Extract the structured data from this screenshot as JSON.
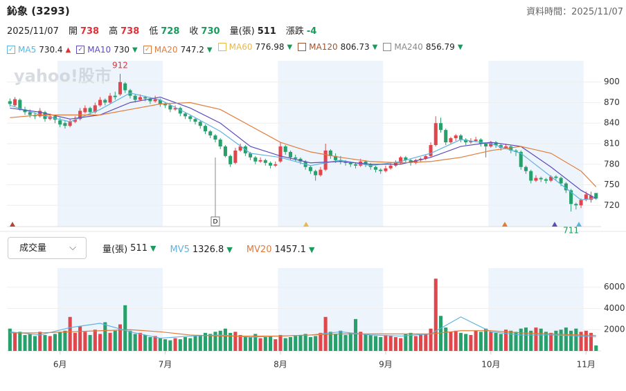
{
  "header": {
    "title": "鈊象 (3293)",
    "time": "資料時間：2025/11/07"
  },
  "quote": {
    "date": "2025/11/07",
    "items": [
      {
        "label": "開",
        "value": "738",
        "color": "#e0313a"
      },
      {
        "label": "高",
        "value": "738",
        "color": "#e0313a"
      },
      {
        "label": "低",
        "value": "728",
        "color": "#1a9a5c"
      },
      {
        "label": "收",
        "value": "730",
        "color": "#1a9a5c"
      },
      {
        "label": "量(張)",
        "value": "511",
        "color": "#222222"
      },
      {
        "label": "漲跌",
        "value": "-4",
        "color": "#1a9a5c"
      }
    ]
  },
  "chart_data": {
    "type": "candlestick",
    "watermark": "yahoo!股市",
    "up_color": "#e0474c",
    "down_color": "#27a06b",
    "xlim": [
      -0.6,
      118
    ],
    "ylim": [
      689,
      931
    ],
    "yticks": [
      720,
      750,
      780,
      810,
      840,
      870,
      900
    ],
    "xticks": [
      {
        "value": 10,
        "label": "6月"
      },
      {
        "value": 31,
        "label": "7月"
      },
      {
        "value": 54,
        "label": "8月"
      },
      {
        "value": 75,
        "label": "9月"
      },
      {
        "value": 96,
        "label": "10月"
      },
      {
        "value": 115,
        "label": "11月"
      }
    ],
    "events": [
      {
        "index": 41,
        "label": "D"
      }
    ],
    "ohlc": [
      [
        872,
        876,
        864,
        868
      ],
      [
        866,
        878,
        864,
        875
      ],
      [
        874,
        876,
        858,
        860
      ],
      [
        860,
        864,
        852,
        856
      ],
      [
        856,
        860,
        848,
        852
      ],
      [
        852,
        856,
        846,
        850
      ],
      [
        850,
        862,
        848,
        858
      ],
      [
        856,
        858,
        842,
        846
      ],
      [
        846,
        854,
        844,
        850
      ],
      [
        850,
        852,
        840,
        845
      ],
      [
        844,
        848,
        834,
        838
      ],
      [
        840,
        844,
        832,
        836
      ],
      [
        836,
        846,
        834,
        842
      ],
      [
        842,
        850,
        840,
        845
      ],
      [
        846,
        862,
        844,
        858
      ],
      [
        856,
        866,
        854,
        862
      ],
      [
        862,
        864,
        852,
        856
      ],
      [
        856,
        870,
        854,
        866
      ],
      [
        866,
        878,
        864,
        874
      ],
      [
        874,
        876,
        866,
        870
      ],
      [
        870,
        884,
        868,
        880
      ],
      [
        880,
        886,
        874,
        878
      ],
      [
        882,
        912,
        880,
        900
      ],
      [
        898,
        900,
        884,
        888
      ],
      [
        888,
        890,
        876,
        880
      ],
      [
        880,
        882,
        870,
        874
      ],
      [
        874,
        882,
        872,
        878
      ],
      [
        878,
        880,
        872,
        876
      ],
      [
        876,
        878,
        868,
        872
      ],
      [
        872,
        880,
        870,
        875
      ],
      [
        874,
        876,
        864,
        868
      ],
      [
        868,
        870,
        862,
        866
      ],
      [
        866,
        868,
        856,
        860
      ],
      [
        860,
        866,
        858,
        862
      ],
      [
        862,
        864,
        850,
        854
      ],
      [
        854,
        856,
        846,
        850
      ],
      [
        850,
        852,
        842,
        846
      ],
      [
        846,
        848,
        838,
        842
      ],
      [
        842,
        844,
        832,
        836
      ],
      [
        836,
        838,
        824,
        828
      ],
      [
        828,
        830,
        818,
        822
      ],
      [
        822,
        824,
        812,
        816
      ],
      [
        816,
        818,
        802,
        806
      ],
      [
        806,
        808,
        790,
        792
      ],
      [
        792,
        794,
        776,
        780
      ],
      [
        782,
        804,
        780,
        800
      ],
      [
        800,
        810,
        798,
        806
      ],
      [
        806,
        808,
        792,
        796
      ],
      [
        796,
        798,
        786,
        790
      ],
      [
        790,
        792,
        780,
        784
      ],
      [
        784,
        790,
        782,
        786
      ],
      [
        786,
        788,
        778,
        782
      ],
      [
        782,
        784,
        774,
        778
      ],
      [
        778,
        784,
        776,
        780
      ],
      [
        784,
        812,
        782,
        806
      ],
      [
        806,
        808,
        794,
        798
      ],
      [
        798,
        800,
        786,
        790
      ],
      [
        790,
        794,
        784,
        788
      ],
      [
        788,
        790,
        780,
        784
      ],
      [
        784,
        786,
        772,
        776
      ],
      [
        776,
        778,
        766,
        770
      ],
      [
        770,
        772,
        756,
        764
      ],
      [
        764,
        776,
        762,
        772
      ],
      [
        772,
        810,
        770,
        800
      ],
      [
        800,
        802,
        788,
        792
      ],
      [
        792,
        796,
        782,
        786
      ],
      [
        786,
        792,
        780,
        784
      ],
      [
        784,
        786,
        778,
        782
      ],
      [
        782,
        784,
        776,
        780
      ],
      [
        780,
        782,
        774,
        778
      ],
      [
        778,
        788,
        776,
        784
      ],
      [
        784,
        786,
        776,
        780
      ],
      [
        780,
        782,
        772,
        776
      ],
      [
        776,
        778,
        768,
        772
      ],
      [
        772,
        774,
        766,
        770
      ],
      [
        770,
        778,
        768,
        774
      ],
      [
        774,
        782,
        772,
        778
      ],
      [
        778,
        786,
        776,
        782
      ],
      [
        782,
        792,
        780,
        790
      ],
      [
        790,
        792,
        782,
        786
      ],
      [
        786,
        788,
        778,
        782
      ],
      [
        782,
        788,
        780,
        786
      ],
      [
        786,
        790,
        784,
        788
      ],
      [
        788,
        794,
        786,
        792
      ],
      [
        792,
        812,
        790,
        808
      ],
      [
        808,
        850,
        806,
        840
      ],
      [
        840,
        848,
        826,
        830
      ],
      [
        830,
        832,
        808,
        812
      ],
      [
        812,
        820,
        810,
        818
      ],
      [
        818,
        824,
        814,
        822
      ],
      [
        822,
        824,
        812,
        816
      ],
      [
        816,
        818,
        808,
        812
      ],
      [
        812,
        818,
        810,
        814
      ],
      [
        814,
        820,
        812,
        816
      ],
      [
        816,
        818,
        806,
        810
      ],
      [
        810,
        812,
        790,
        806
      ],
      [
        806,
        814,
        804,
        812
      ],
      [
        812,
        814,
        804,
        808
      ],
      [
        808,
        810,
        800,
        804
      ],
      [
        804,
        810,
        802,
        806
      ],
      [
        806,
        808,
        796,
        800
      ],
      [
        800,
        802,
        792,
        798
      ],
      [
        798,
        800,
        772,
        776
      ],
      [
        776,
        778,
        766,
        770
      ],
      [
        770,
        772,
        752,
        756
      ],
      [
        756,
        764,
        754,
        760
      ],
      [
        760,
        762,
        754,
        758
      ],
      [
        758,
        760,
        752,
        756
      ],
      [
        756,
        764,
        754,
        762
      ],
      [
        762,
        764,
        756,
        760
      ],
      [
        760,
        762,
        748,
        752
      ],
      [
        752,
        754,
        738,
        742
      ],
      [
        742,
        744,
        711,
        722
      ],
      [
        722,
        724,
        714,
        720
      ],
      [
        720,
        730,
        716,
        728
      ],
      [
        728,
        740,
        726,
        736
      ],
      [
        728,
        740,
        724,
        734
      ],
      [
        738,
        738,
        728,
        730
      ]
    ],
    "ma_x": [
      0,
      6,
      12,
      18,
      24,
      30,
      36,
      42,
      48,
      54,
      60,
      66,
      72,
      78,
      84,
      90,
      96,
      102,
      108,
      114,
      117
    ],
    "ma_series": [
      {
        "name": "MA5",
        "value": "730.4",
        "trend": "▲",
        "color": "#5fb3e0",
        "checked": true,
        "values": [
          866,
          852,
          842,
          860,
          884,
          874,
          852,
          828,
          796,
          790,
          778,
          786,
          778,
          784,
          796,
          816,
          810,
          796,
          762,
          728,
          730.4
        ]
      },
      {
        "name": "MA10",
        "value": "730",
        "trend": "▼",
        "color": "#5b4bbd",
        "checked": true,
        "values": [
          862,
          856,
          846,
          852,
          870,
          878,
          862,
          840,
          806,
          792,
          782,
          784,
          780,
          780,
          790,
          806,
          812,
          806,
          776,
          742,
          730
        ]
      },
      {
        "name": "MA20",
        "value": "747.2",
        "trend": "▼",
        "color": "#e07b39",
        "checked": true,
        "values": [
          848,
          852,
          852,
          852,
          860,
          868,
          870,
          860,
          836,
          812,
          798,
          790,
          784,
          782,
          784,
          790,
          800,
          806,
          796,
          770,
          747.2
        ]
      },
      {
        "name": "MA60",
        "value": "776.98",
        "trend": "▼",
        "color": "#e8b84a",
        "checked": false
      },
      {
        "name": "MA120",
        "value": "806.73",
        "trend": "▼",
        "color": "#a0522d",
        "checked": false
      },
      {
        "name": "MA240",
        "value": "856.79",
        "trend": "▼",
        "color": "#888888",
        "checked": false
      }
    ],
    "volume": {
      "selector": "成交量",
      "ylim": [
        0,
        7800
      ],
      "yticks": [
        2000,
        4000,
        6000
      ],
      "values": [
        2100,
        1700,
        1800,
        1500,
        1600,
        1400,
        1800,
        1500,
        1400,
        1600,
        1800,
        1900,
        3200,
        1700,
        2300,
        1800,
        1500,
        2000,
        1600,
        2700,
        1700,
        1900,
        2500,
        4300,
        1900,
        1600,
        1700,
        1500,
        1300,
        1400,
        1200,
        1100,
        1000,
        1200,
        1100,
        1300,
        1200,
        1400,
        1500,
        1700,
        1600,
        1800,
        1900,
        2100,
        1700,
        1800,
        1500,
        1400,
        1300,
        1600,
        1200,
        1300,
        1400,
        1100,
        1500,
        1200,
        1300,
        1400,
        1500,
        1600,
        1300,
        1400,
        1700,
        3200,
        1800,
        1600,
        1900,
        1500,
        1700,
        3000,
        1800,
        1600,
        1500,
        1400,
        1300,
        1500,
        1400,
        1300,
        1200,
        1600,
        1700,
        1400,
        1500,
        1600,
        2100,
        6800,
        3300,
        2200,
        1800,
        1900,
        1700,
        1600,
        1500,
        1900,
        1800,
        2100,
        1800,
        1700,
        1600,
        2000,
        1900,
        1800,
        2100,
        2200,
        1900,
        2200,
        2100,
        1800,
        1700,
        1900,
        2000,
        2200,
        1900,
        2100,
        1800,
        1900,
        1700,
        511
      ],
      "legend": [
        {
          "name": "量(張)",
          "value": "511",
          "trend": "▼",
          "color": "#222222"
        },
        {
          "name": "MV5",
          "value": "1326.8",
          "trend": "▼",
          "color": "#5fb3e0",
          "values": [
            1800,
            1500,
            2200,
            2600,
            1800,
            1200,
            1400,
            1500,
            1300,
            1400,
            1500,
            1800,
            1500,
            1400,
            1600,
            3200,
            1800,
            1500,
            1500,
            1400,
            1326.8
          ]
        },
        {
          "name": "MV20",
          "value": "1457.1",
          "trend": "▼",
          "color": "#e07b39",
          "values": [
            1700,
            1700,
            1800,
            1900,
            2000,
            1800,
            1500,
            1400,
            1400,
            1400,
            1500,
            1600,
            1600,
            1600,
            1600,
            1900,
            1900,
            1700,
            1600,
            1500,
            1457.1
          ]
        }
      ]
    }
  }
}
